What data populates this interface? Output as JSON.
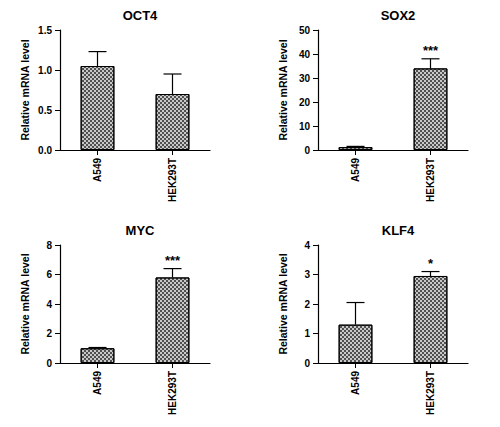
{
  "chart_data": [
    {
      "type": "bar",
      "title": "OCT4",
      "y_label": "Relative mRNA level",
      "categories": [
        "A549",
        "HEK293T"
      ],
      "values": [
        1.05,
        0.7
      ],
      "errors": [
        0.18,
        0.25
      ],
      "color": "#c8c8c8",
      "ylim": [
        0,
        1.5
      ],
      "yticks": [
        {
          "value": 0,
          "label": "0.0"
        },
        {
          "value": 0.5,
          "label": "0.5"
        },
        {
          "value": 1,
          "label": "1.0"
        },
        {
          "value": 1.5,
          "label": "1.5"
        }
      ],
      "grid": false
    },
    {
      "type": "bar",
      "title": "SOX2",
      "y_label": "Relative mRNA level",
      "categories": [
        "A549",
        "HEK293T"
      ],
      "values": [
        1.2,
        34
      ],
      "errors": [
        0.3,
        4
      ],
      "color": "#c8c8c8",
      "ylim": [
        0,
        50
      ],
      "yticks": [
        0,
        10,
        20,
        30,
        40,
        50
      ],
      "grid": false,
      "annotations": [
        {
          "category": "HEK293T",
          "text": "***"
        }
      ]
    },
    {
      "type": "bar",
      "title": "MYC",
      "y_label": "Relative mRNA level",
      "categories": [
        "A549",
        "HEK293T"
      ],
      "values": [
        1.0,
        5.8
      ],
      "errors": [
        0.05,
        0.6
      ],
      "color": "#c8c8c8",
      "ylim": [
        0,
        8
      ],
      "yticks": [
        0,
        2,
        4,
        6,
        8
      ],
      "grid": false,
      "annotations": [
        {
          "category": "HEK293T",
          "text": "***"
        }
      ]
    },
    {
      "type": "bar",
      "title": "KLF4",
      "y_label": "Relative mRNA level",
      "categories": [
        "A549",
        "HEK293T"
      ],
      "values": [
        1.3,
        2.95
      ],
      "errors": [
        0.75,
        0.15
      ],
      "color": "#c8c8c8",
      "ylim": [
        0,
        4
      ],
      "yticks": [
        0,
        1,
        2,
        3,
        4
      ],
      "grid": false,
      "annotations": [
        {
          "category": "HEK293T",
          "text": "*"
        }
      ]
    }
  ]
}
